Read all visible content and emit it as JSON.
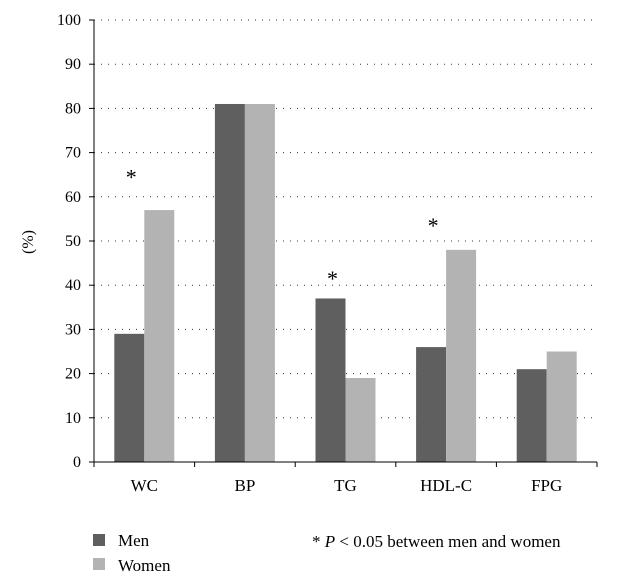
{
  "chart_data": {
    "type": "bar",
    "categories": [
      "WC",
      "BP",
      "TG",
      "HDL-C",
      "FPG"
    ],
    "series": [
      {
        "name": "Men",
        "color": "#5f5f5f",
        "values": [
          29,
          81,
          37,
          26,
          21
        ]
      },
      {
        "name": "Women",
        "color": "#b3b3b3",
        "values": [
          57,
          81,
          19,
          48,
          25
        ]
      }
    ],
    "ylabel": "(%)",
    "ylim": [
      0,
      100
    ],
    "yticks": [
      "0",
      "10",
      "20",
      "30",
      "40",
      "50",
      "60",
      "70",
      "80",
      "90",
      "100"
    ],
    "grid": "dotted horizontal",
    "significance_marker": "*",
    "significant_categories": [
      {
        "category": "WC",
        "level": 66
      },
      {
        "category": "TG",
        "level": 43
      },
      {
        "category": "HDL-C",
        "level": 55
      }
    ],
    "legend_placement": "bottom-left",
    "footnote": {
      "star": "*",
      "p": "P",
      "rest": " < 0.05 between men and women"
    }
  }
}
